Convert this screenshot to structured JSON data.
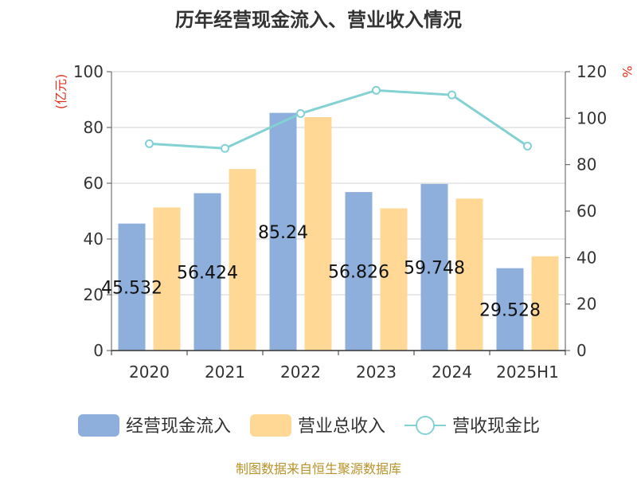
{
  "chart_data": {
    "type": "bar",
    "title": "历年经营现金流入、营业收入情况",
    "categories": [
      "2020",
      "2021",
      "2022",
      "2023",
      "2024",
      "2025H1"
    ],
    "series": [
      {
        "name": "经营现金流入",
        "kind": "bar",
        "axis": "left",
        "color": "#8eaedb",
        "values": [
          45.532,
          56.424,
          85.24,
          56.826,
          59.748,
          29.528
        ]
      },
      {
        "name": "营业总收入",
        "kind": "bar",
        "axis": "left",
        "color": "#ffd896",
        "values": [
          51.3,
          65.1,
          83.7,
          51.0,
          54.5,
          33.8
        ]
      },
      {
        "name": "营收现金比",
        "kind": "line",
        "axis": "right",
        "color": "#84d1d4",
        "values": [
          89,
          87,
          102,
          112,
          110,
          88
        ]
      }
    ],
    "bar_labels": [
      "45.532",
      "56.424",
      "85.24",
      "56.826",
      "59.748",
      "29.528"
    ],
    "y_left": {
      "unit": "(亿元)",
      "ylim": [
        0,
        100
      ],
      "ticks": [
        0,
        20,
        40,
        60,
        80,
        100
      ]
    },
    "y_right": {
      "unit": "%",
      "ylim": [
        0,
        120
      ],
      "ticks": [
        0,
        20,
        40,
        60,
        80,
        100,
        120
      ]
    },
    "grid": true,
    "legend_position": "bottom",
    "source": "制图数据来自恒生聚源数据库"
  }
}
